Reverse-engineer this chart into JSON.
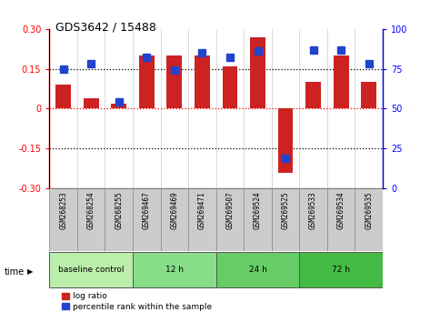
{
  "title": "GDS3642 / 15488",
  "samples": [
    "GSM268253",
    "GSM268254",
    "GSM268255",
    "GSM269467",
    "GSM269469",
    "GSM269471",
    "GSM269507",
    "GSM269524",
    "GSM269525",
    "GSM269533",
    "GSM269534",
    "GSM269535"
  ],
  "log_ratio": [
    0.09,
    0.04,
    0.02,
    0.2,
    0.2,
    0.2,
    0.16,
    0.27,
    -0.24,
    0.1,
    0.2,
    0.1
  ],
  "percentile": [
    75,
    78,
    54,
    82,
    74,
    85,
    82,
    86,
    19,
    87,
    87,
    78
  ],
  "ylim_left": [
    -0.3,
    0.3
  ],
  "ylim_right": [
    0,
    100
  ],
  "yticks_left": [
    -0.3,
    -0.15,
    0,
    0.15,
    0.3
  ],
  "yticks_right": [
    0,
    25,
    50,
    75,
    100
  ],
  "hlines_black": [
    0.15,
    -0.15
  ],
  "hline_red": 0.0,
  "bar_color_red": "#cc2222",
  "bar_color_blue": "#2244cc",
  "bar_width": 0.55,
  "blue_marker_size": 6,
  "groups": [
    {
      "label": "baseline control",
      "start": 0,
      "end": 3,
      "color": "#bbeeaa"
    },
    {
      "label": "12 h",
      "start": 3,
      "end": 6,
      "color": "#88dd88"
    },
    {
      "label": "24 h",
      "start": 6,
      "end": 9,
      "color": "#66cc66"
    },
    {
      "label": "72 h",
      "start": 9,
      "end": 12,
      "color": "#44bb44"
    }
  ],
  "xlabel_time": "time",
  "legend_red": "log ratio",
  "legend_blue": "percentile rank within the sample",
  "bg_color": "#ffffff",
  "xticklabel_bg": "#cccccc"
}
